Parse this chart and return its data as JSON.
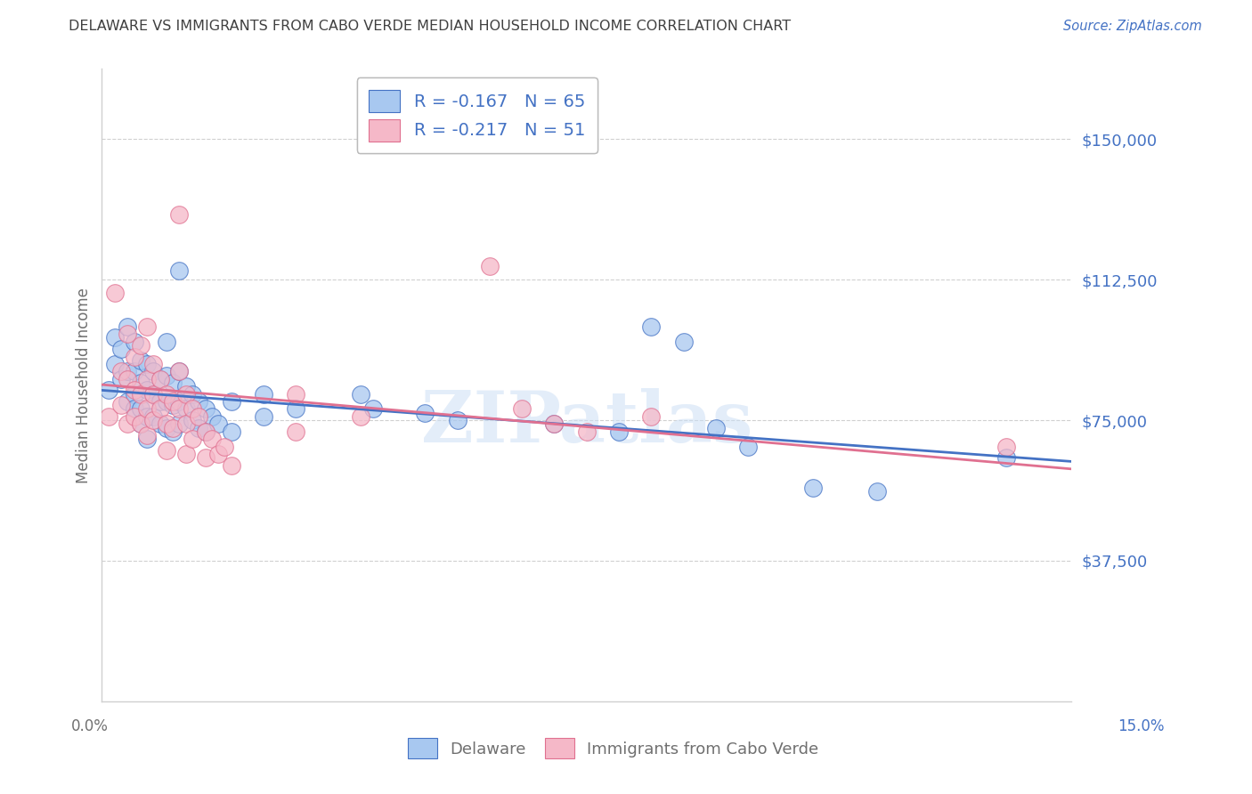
{
  "title": "DELAWARE VS IMMIGRANTS FROM CABO VERDE MEDIAN HOUSEHOLD INCOME CORRELATION CHART",
  "source": "Source: ZipAtlas.com",
  "ylabel": "Median Household Income",
  "y_ticks": [
    37500,
    75000,
    112500,
    150000
  ],
  "y_tick_labels": [
    "$37,500",
    "$75,000",
    "$112,500",
    "$150,000"
  ],
  "x_range": [
    0,
    0.15
  ],
  "y_range": [
    0,
    168750
  ],
  "legend_label1": "Delaware",
  "legend_label2": "Immigrants from Cabo Verde",
  "R1": -0.167,
  "N1": 65,
  "R2": -0.217,
  "N2": 51,
  "color_blue": "#A8C8F0",
  "color_pink": "#F5B8C8",
  "color_blue_line": "#4472C4",
  "color_pink_line": "#E07090",
  "color_title": "#404040",
  "color_axis_label": "#707070",
  "color_source": "#4472C4",
  "color_tick_labels": "#4472C4",
  "color_grid": "#D0D0D0",
  "watermark": "ZIPatlas",
  "line_y0_blue": 83000,
  "line_y1_blue": 64000,
  "line_y0_pink": 84500,
  "line_y1_pink": 62000,
  "blue_points": [
    [
      0.001,
      83000
    ],
    [
      0.002,
      90000
    ],
    [
      0.002,
      97000
    ],
    [
      0.003,
      94000
    ],
    [
      0.003,
      86000
    ],
    [
      0.004,
      100000
    ],
    [
      0.004,
      88000
    ],
    [
      0.004,
      80000
    ],
    [
      0.005,
      96000
    ],
    [
      0.005,
      88000
    ],
    [
      0.005,
      82000
    ],
    [
      0.005,
      78000
    ],
    [
      0.006,
      91000
    ],
    [
      0.006,
      85000
    ],
    [
      0.006,
      78000
    ],
    [
      0.006,
      74000
    ],
    [
      0.007,
      90000
    ],
    [
      0.007,
      83000
    ],
    [
      0.007,
      76000
    ],
    [
      0.007,
      70000
    ],
    [
      0.008,
      88000
    ],
    [
      0.008,
      82000
    ],
    [
      0.008,
      76000
    ],
    [
      0.009,
      86000
    ],
    [
      0.009,
      80000
    ],
    [
      0.009,
      74000
    ],
    [
      0.01,
      96000
    ],
    [
      0.01,
      87000
    ],
    [
      0.01,
      80000
    ],
    [
      0.01,
      73000
    ],
    [
      0.011,
      85000
    ],
    [
      0.011,
      79000
    ],
    [
      0.011,
      72000
    ],
    [
      0.012,
      115000
    ],
    [
      0.012,
      88000
    ],
    [
      0.012,
      80000
    ],
    [
      0.012,
      74000
    ],
    [
      0.013,
      84000
    ],
    [
      0.013,
      78000
    ],
    [
      0.014,
      82000
    ],
    [
      0.014,
      75000
    ],
    [
      0.015,
      80000
    ],
    [
      0.015,
      73000
    ],
    [
      0.016,
      78000
    ],
    [
      0.016,
      72000
    ],
    [
      0.017,
      76000
    ],
    [
      0.018,
      74000
    ],
    [
      0.02,
      80000
    ],
    [
      0.02,
      72000
    ],
    [
      0.025,
      82000
    ],
    [
      0.025,
      76000
    ],
    [
      0.03,
      78000
    ],
    [
      0.04,
      82000
    ],
    [
      0.042,
      78000
    ],
    [
      0.05,
      77000
    ],
    [
      0.055,
      75000
    ],
    [
      0.07,
      74000
    ],
    [
      0.08,
      72000
    ],
    [
      0.085,
      100000
    ],
    [
      0.09,
      96000
    ],
    [
      0.095,
      73000
    ],
    [
      0.1,
      68000
    ],
    [
      0.11,
      57000
    ],
    [
      0.12,
      56000
    ],
    [
      0.14,
      65000
    ]
  ],
  "pink_points": [
    [
      0.001,
      76000
    ],
    [
      0.002,
      109000
    ],
    [
      0.003,
      88000
    ],
    [
      0.003,
      79000
    ],
    [
      0.004,
      98000
    ],
    [
      0.004,
      86000
    ],
    [
      0.004,
      74000
    ],
    [
      0.005,
      92000
    ],
    [
      0.005,
      83000
    ],
    [
      0.005,
      76000
    ],
    [
      0.006,
      95000
    ],
    [
      0.006,
      82000
    ],
    [
      0.006,
      74000
    ],
    [
      0.007,
      100000
    ],
    [
      0.007,
      86000
    ],
    [
      0.007,
      78000
    ],
    [
      0.007,
      71000
    ],
    [
      0.008,
      90000
    ],
    [
      0.008,
      82000
    ],
    [
      0.008,
      75000
    ],
    [
      0.009,
      86000
    ],
    [
      0.009,
      78000
    ],
    [
      0.01,
      82000
    ],
    [
      0.01,
      74000
    ],
    [
      0.01,
      67000
    ],
    [
      0.011,
      80000
    ],
    [
      0.011,
      73000
    ],
    [
      0.012,
      130000
    ],
    [
      0.012,
      88000
    ],
    [
      0.012,
      78000
    ],
    [
      0.013,
      82000
    ],
    [
      0.013,
      74000
    ],
    [
      0.013,
      66000
    ],
    [
      0.014,
      78000
    ],
    [
      0.014,
      70000
    ],
    [
      0.015,
      76000
    ],
    [
      0.016,
      72000
    ],
    [
      0.016,
      65000
    ],
    [
      0.017,
      70000
    ],
    [
      0.018,
      66000
    ],
    [
      0.019,
      68000
    ],
    [
      0.02,
      63000
    ],
    [
      0.03,
      82000
    ],
    [
      0.03,
      72000
    ],
    [
      0.04,
      76000
    ],
    [
      0.06,
      116000
    ],
    [
      0.065,
      78000
    ],
    [
      0.07,
      74000
    ],
    [
      0.075,
      72000
    ],
    [
      0.085,
      76000
    ],
    [
      0.14,
      68000
    ]
  ]
}
